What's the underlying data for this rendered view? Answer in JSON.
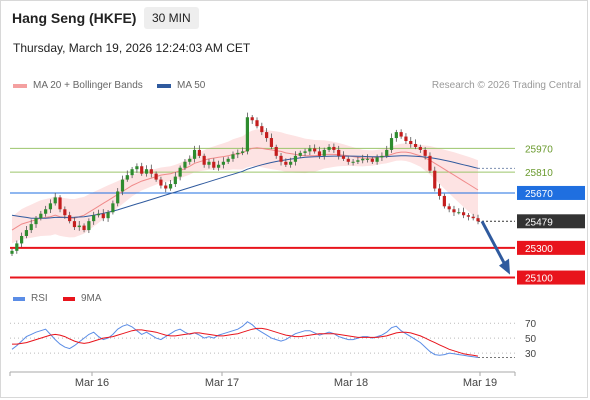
{
  "header": {
    "title": "Hang Seng (HKFE)",
    "timeframe": "30 MIN",
    "timestamp": "Thursday, March 19, 2026 12:24:03 AM CET"
  },
  "legend": {
    "bollinger": "MA 20 + Bollinger Bands",
    "ma50": "MA 50",
    "credit": "Research © 2026 Trading Central"
  },
  "rsi_legend": {
    "rsi": "RSI",
    "ma9": "9MA"
  },
  "colors": {
    "up": "#2e8b2e",
    "down": "#c41e1e",
    "bb_fill": "#fde3e3",
    "ma20": "#f08a8a",
    "ma50": "#2f5a9e",
    "resistance": "#9cc56b",
    "pivot": "#1f6fe0",
    "support": "#e8141c",
    "last": "#333333",
    "rsi": "#5b8de6",
    "ma9": "#e8141c"
  },
  "chart_data": [
    {
      "type": "line",
      "title": "Hang Seng (HKFE) 30 MIN",
      "x_tick_labels": [
        "Mar 16",
        "Mar 17",
        "Mar 18",
        "Mar 19"
      ],
      "price_levels": [
        {
          "label": "25970",
          "value": 25970,
          "kind": "resistance"
        },
        {
          "label": "25810",
          "value": 25810,
          "kind": "resistance"
        },
        {
          "label": "25670",
          "value": 25670,
          "kind": "pivot"
        },
        {
          "label": "25479",
          "value": 25479,
          "kind": "last"
        },
        {
          "label": "25300",
          "value": 25300,
          "kind": "support"
        },
        {
          "label": "25100",
          "value": 25100,
          "kind": "support"
        }
      ],
      "ylim": [
        25070,
        26330
      ],
      "candles_close": [
        25280,
        25330,
        25380,
        25420,
        25460,
        25500,
        25530,
        25560,
        25600,
        25640,
        25560,
        25520,
        25480,
        25440,
        25450,
        25420,
        25480,
        25520,
        25530,
        25500,
        25540,
        25600,
        25680,
        25760,
        25790,
        25830,
        25850,
        25800,
        25830,
        25800,
        25760,
        25720,
        25700,
        25730,
        25780,
        25840,
        25880,
        25900,
        25960,
        25920,
        25860,
        25880,
        25840,
        25860,
        25880,
        25900,
        25930,
        25940,
        25950,
        26180,
        26160,
        26120,
        26080,
        26040,
        25980,
        25920,
        25880,
        25860,
        25880,
        25920,
        25940,
        25950,
        25970,
        25950,
        25920,
        25960,
        25980,
        25960,
        25920,
        25900,
        25880,
        25880,
        25890,
        25900,
        25900,
        25880,
        25910,
        25920,
        25960,
        26040,
        26080,
        26050,
        26020,
        26000,
        25980,
        25960,
        25920,
        25820,
        25700,
        25650,
        25580,
        25560,
        25540,
        25540,
        25520,
        25510,
        25500,
        25479
      ],
      "series": [
        {
          "name": "MA 20",
          "values": [
            25420,
            25440,
            25460,
            25470,
            25480,
            25490,
            25500,
            25505,
            25510,
            25520,
            25510,
            25505,
            25500,
            25500,
            25510,
            25520,
            25540,
            25560,
            25580,
            25600,
            25620,
            25640,
            25660,
            25680,
            25700,
            25720,
            25735,
            25750,
            25760,
            25770,
            25780,
            25790,
            25795,
            25800,
            25810,
            25820,
            25835,
            25850,
            25870,
            25880,
            25890,
            25900,
            25905,
            25910,
            25915,
            25920,
            25930,
            25935,
            25940,
            25960,
            25970,
            25975,
            25970,
            25965,
            25960,
            25955,
            25950,
            25940,
            25935,
            25930,
            25925,
            25920,
            25920,
            25920,
            25925,
            25930,
            25930,
            25930,
            25928,
            25925,
            25920,
            25915,
            25910,
            25905,
            25905,
            25905,
            25910,
            25915,
            25920,
            25930,
            25940,
            25945,
            25945,
            25940,
            25930,
            25920,
            25905,
            25890,
            25870,
            25850,
            25830,
            25810,
            25790,
            25770,
            25750,
            25730,
            25710,
            25690
          ]
        },
        {
          "name": "MA 50",
          "values": [
            25520,
            25515,
            25510,
            25505,
            25500,
            25500,
            25500,
            25500,
            25502,
            25505,
            25505,
            25505,
            25505,
            25506,
            25508,
            25510,
            25515,
            25520,
            25526,
            25532,
            25540,
            25548,
            25556,
            25566,
            25576,
            25586,
            25596,
            25606,
            25616,
            25626,
            25636,
            25646,
            25656,
            25666,
            25676,
            25686,
            25696,
            25706,
            25716,
            25726,
            25736,
            25746,
            25756,
            25766,
            25776,
            25786,
            25796,
            25806,
            25816,
            25830,
            25840,
            25850,
            25860,
            25868,
            25875,
            25882,
            25888,
            25893,
            25898,
            25902,
            25906,
            25910,
            25912,
            25914,
            25915,
            25916,
            25917,
            25918,
            25918,
            25918,
            25918,
            25918,
            25917,
            25916,
            25915,
            25914,
            25914,
            25914,
            25915,
            25917,
            25919,
            25920,
            25920,
            25919,
            25917,
            25915,
            25912,
            25908,
            25903,
            25897,
            25890,
            25883,
            25876,
            25868,
            25860,
            25852,
            25844,
            25836
          ]
        }
      ]
    },
    {
      "type": "line",
      "title": "RSI",
      "y_tick_labels": [
        "70",
        "50",
        "30"
      ],
      "ylim": [
        10,
        85
      ],
      "series": [
        {
          "name": "RSI",
          "values": [
            35,
            40,
            46,
            52,
            55,
            58,
            60,
            62,
            55,
            48,
            42,
            38,
            36,
            40,
            45,
            50,
            55,
            58,
            52,
            48,
            50,
            55,
            62,
            66,
            68,
            65,
            60,
            55,
            58,
            54,
            50,
            48,
            52,
            56,
            60,
            62,
            58,
            55,
            57,
            54,
            50,
            52,
            50,
            54,
            56,
            58,
            60,
            62,
            66,
            72,
            68,
            62,
            58,
            54,
            50,
            48,
            46,
            48,
            52,
            56,
            58,
            60,
            60,
            57,
            54,
            56,
            58,
            56,
            52,
            50,
            48,
            48,
            50,
            52,
            52,
            50,
            52,
            54,
            58,
            64,
            66,
            60,
            56,
            52,
            48,
            44,
            38,
            32,
            28,
            27,
            28,
            30,
            29,
            28,
            27,
            26,
            25,
            24
          ]
        },
        {
          "name": "9MA",
          "values": [
            42,
            42,
            43,
            44,
            46,
            48,
            50,
            52,
            54,
            55,
            54,
            52,
            49,
            46,
            44,
            43,
            44,
            46,
            48,
            50,
            51,
            52,
            54,
            56,
            58,
            60,
            61,
            61,
            60,
            59,
            58,
            56,
            54,
            53,
            53,
            54,
            55,
            56,
            57,
            57,
            56,
            55,
            54,
            53,
            53,
            54,
            55,
            56,
            58,
            60,
            62,
            63,
            63,
            62,
            60,
            58,
            56,
            54,
            53,
            52,
            52,
            53,
            54,
            55,
            56,
            56,
            56,
            56,
            55,
            54,
            53,
            52,
            51,
            51,
            51,
            51,
            51,
            52,
            53,
            55,
            57,
            58,
            58,
            57,
            55,
            53,
            50,
            47,
            44,
            41,
            38,
            35,
            33,
            31,
            29,
            28,
            27,
            26
          ]
        }
      ]
    }
  ]
}
